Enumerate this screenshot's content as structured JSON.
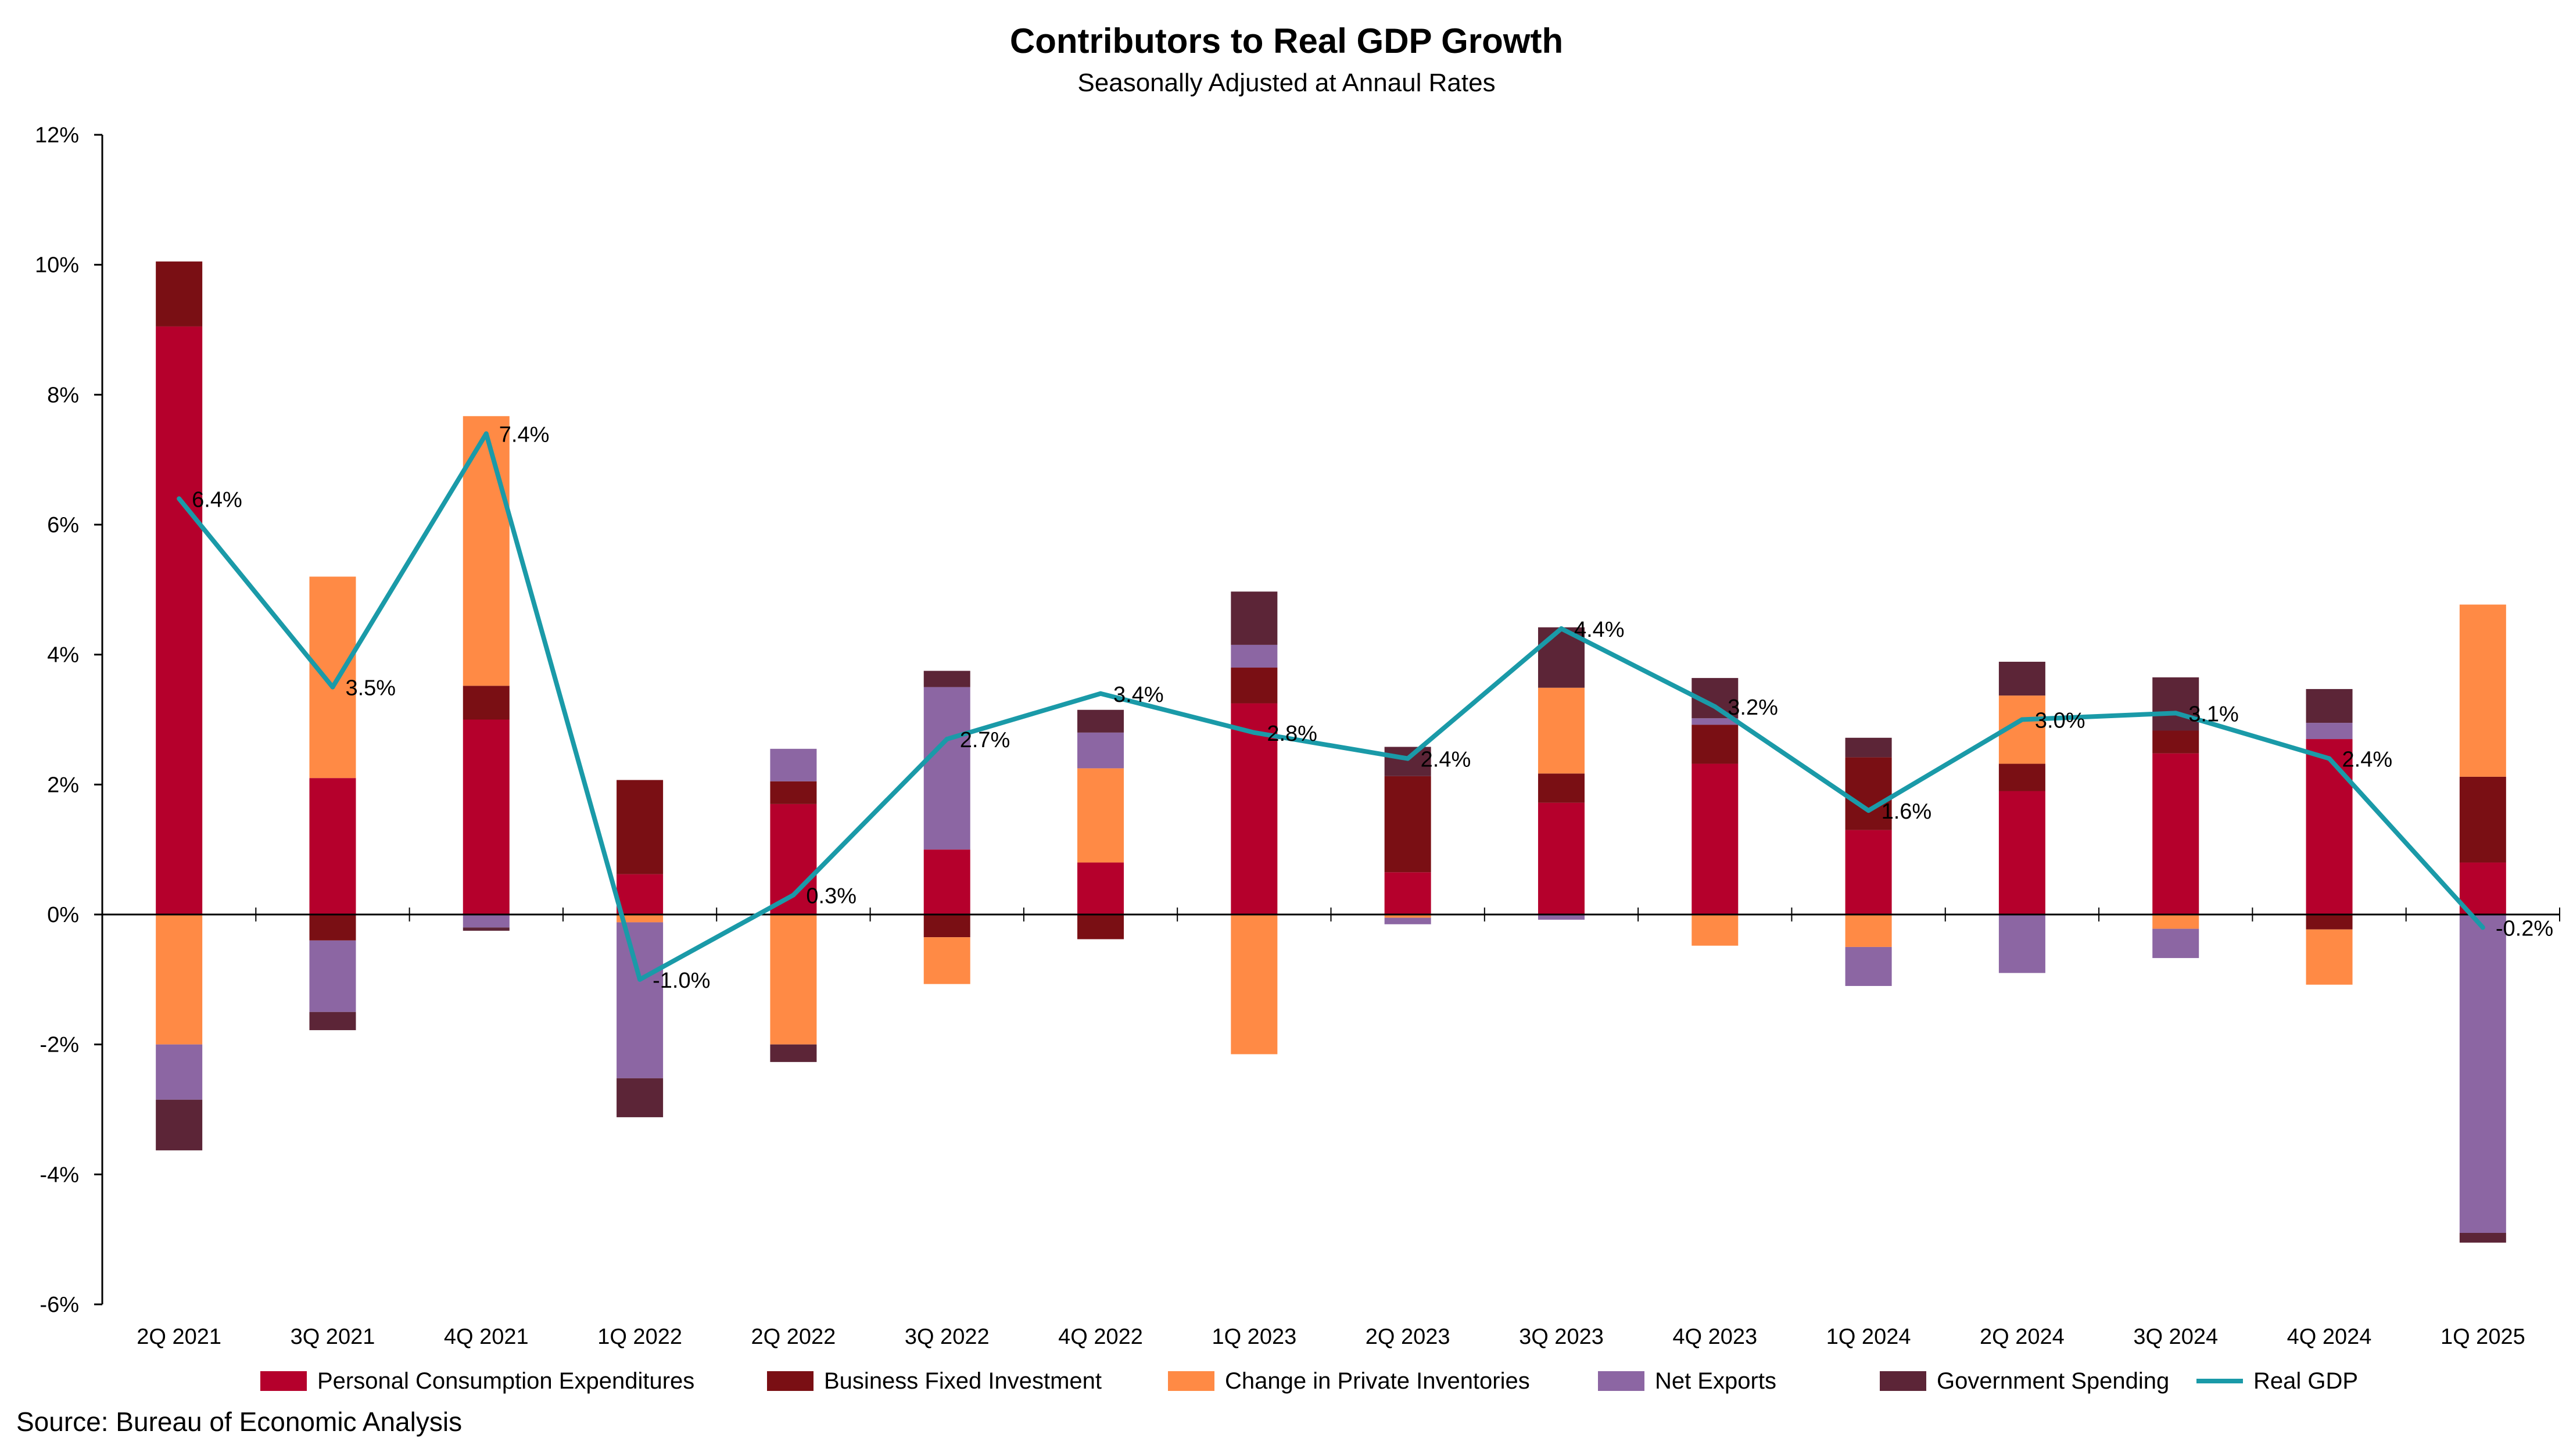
{
  "title": "Contributors to Real GDP Growth",
  "subtitle": "Seasonally Adjusted at Annaul Rates",
  "source": "Source: Bureau of Economic Analysis",
  "chart_data": {
    "type": "bar",
    "stacked": true,
    "categories": [
      "2Q 2021",
      "3Q 2021",
      "4Q 2021",
      "1Q 2022",
      "2Q 2022",
      "3Q 2022",
      "4Q 2022",
      "1Q 2023",
      "2Q 2023",
      "3Q 2023",
      "4Q 2023",
      "1Q 2024",
      "2Q 2024",
      "3Q 2024",
      "4Q 2024",
      "1Q 2025"
    ],
    "ylim": [
      -6,
      12
    ],
    "yticks": [
      12,
      10,
      8,
      6,
      4,
      2,
      0,
      -2,
      -4,
      -6
    ],
    "ytick_labels": [
      "12%",
      "10%",
      "8%",
      "6%",
      "4%",
      "2%",
      "0%",
      "-2%",
      "-4%",
      "-6%"
    ],
    "grid": false,
    "legend": "bottom",
    "series": [
      {
        "name": "Personal Consumption Expenditures",
        "color": "#b5002c",
        "values": [
          9.05,
          2.1,
          3.0,
          0.62,
          1.7,
          1.0,
          0.8,
          3.25,
          0.65,
          1.72,
          2.32,
          1.3,
          1.9,
          2.48,
          2.7,
          0.8
        ]
      },
      {
        "name": "Business Fixed Investment",
        "color": "#7a0f14",
        "values": [
          1.0,
          -0.4,
          0.52,
          1.45,
          0.35,
          -0.35,
          -0.38,
          0.55,
          1.48,
          0.45,
          0.6,
          1.12,
          0.42,
          0.35,
          -0.23,
          1.32
        ]
      },
      {
        "name": "Change in Private Inventories",
        "color": "#ff8a45",
        "values": [
          -2.0,
          3.1,
          4.15,
          -0.12,
          -2.0,
          -0.72,
          1.45,
          -2.15,
          -0.05,
          1.32,
          -0.48,
          -0.5,
          1.05,
          -0.22,
          -0.85,
          2.65
        ]
      },
      {
        "name": "Net Exports",
        "color": "#8c66a3",
        "values": [
          -0.85,
          -1.1,
          -0.2,
          -2.4,
          0.5,
          2.5,
          0.55,
          0.35,
          -0.1,
          -0.08,
          0.1,
          -0.6,
          -0.9,
          -0.45,
          0.25,
          -4.9
        ]
      },
      {
        "name": "Government Spending",
        "color": "#5c2537",
        "values": [
          -0.78,
          -0.28,
          -0.05,
          -0.6,
          -0.27,
          0.25,
          0.35,
          0.82,
          0.45,
          0.93,
          0.62,
          0.3,
          0.52,
          0.82,
          0.52,
          -0.15
        ]
      }
    ],
    "line": {
      "name": "Real GDP",
      "color": "#1a9aa8",
      "values": [
        6.4,
        3.5,
        7.4,
        -1.0,
        0.3,
        2.7,
        3.4,
        2.8,
        2.4,
        4.4,
        3.2,
        1.6,
        3.0,
        3.1,
        2.4,
        -0.2
      ],
      "labels": [
        "6.4%",
        "3.5%",
        "7.4%",
        "-1.0%",
        "0.3%",
        "2.7%",
        "3.4%",
        "2.8%",
        "2.4%",
        "4.4%",
        "3.2%",
        "1.6%",
        "3.0%",
        "3.1%",
        "2.4%",
        "-0.2%"
      ]
    }
  }
}
